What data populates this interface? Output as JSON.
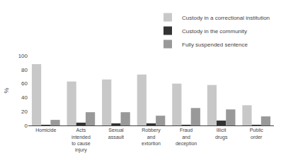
{
  "chart_data": {
    "type": "bar",
    "categories": [
      "Homicide",
      "Acts\nintended\nto cause\ninjury",
      "Sexual\nassault",
      "Robbery\nand\nextortion",
      "Fraud\nand\ndeception",
      "Illicit\ndrugs",
      "Public\norder"
    ],
    "series": [
      {
        "name": "Custody in a correctional institution",
        "color": "#c8c8c8",
        "values": [
          88,
          63,
          66,
          73,
          60,
          58,
          29
        ]
      },
      {
        "name": "Custody in the community",
        "color": "#333333",
        "values": [
          1,
          4,
          3,
          3,
          1,
          7,
          1
        ]
      },
      {
        "name": "Fully suspended sentence",
        "color": "#999999",
        "values": [
          8,
          19,
          19,
          14,
          25,
          23,
          13
        ]
      }
    ],
    "ylabel": "%",
    "ylim": [
      0,
      100
    ],
    "yticks": [
      0,
      20,
      40,
      60,
      80,
      100
    ],
    "legend": "upper right",
    "grid": false
  }
}
